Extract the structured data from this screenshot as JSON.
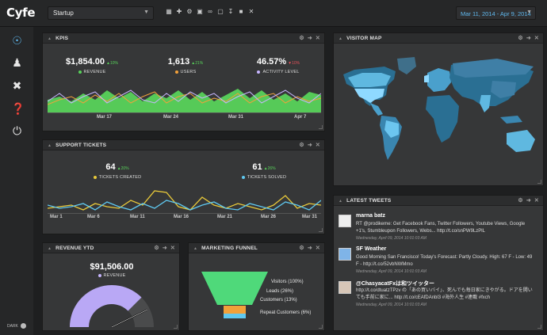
{
  "app": {
    "logo": "Cyfe"
  },
  "toolbar": {
    "dashboard": "Startup",
    "tools": [
      "grid-icon",
      "plus-icon",
      "gear-icon",
      "image-icon",
      "link-icon",
      "monitor-icon",
      "download-icon",
      "users-icon",
      "close-icon"
    ],
    "date_range": "Mar 11, 2014 - Apr 9, 2014"
  },
  "sidebar": {
    "items": [
      "compass-icon",
      "user-icon",
      "tools-icon",
      "help-icon",
      "power-icon"
    ],
    "dark_label": "DARK"
  },
  "kpis": {
    "title": "KPIS",
    "metrics": [
      {
        "value": "$1,854.00",
        "change": "10%",
        "label": "REVENUE",
        "color": "#58d25a"
      },
      {
        "value": "1,613",
        "change": "21%",
        "label": "USERS",
        "color": "#f2a13a"
      },
      {
        "value": "46.57%",
        "change": "10%",
        "label": "ACTIVITY LEVEL",
        "color": "#c7b6ff"
      }
    ],
    "xticks": [
      "Mar 17",
      "Mar 24",
      "Mar 31",
      "Apr 7"
    ]
  },
  "support": {
    "title": "SUPPORT TICKETS",
    "metrics": [
      {
        "value": "64",
        "change": "20%",
        "label": "TICKETS CREATED",
        "color": "#e8c93a"
      },
      {
        "value": "61",
        "change": "26%",
        "label": "TICKETS SOLVED",
        "color": "#5fc8f0"
      }
    ],
    "xticks": [
      "Mar 1",
      "Mar 6",
      "Mar 11",
      "Mar 16",
      "Mar 21",
      "Mar 26",
      "Mar 31"
    ]
  },
  "revenue_ytd": {
    "title": "REVENUE YTD",
    "value": "$91,506.00",
    "label": "REVENUE",
    "fill": 0.75
  },
  "funnel": {
    "title": "MARKETING FUNNEL",
    "stages": [
      {
        "label": "Visitors (100%)",
        "color": "#4fd97a"
      },
      {
        "label": "Leads (26%)",
        "color": "#4fd97a"
      },
      {
        "label": "Customers (13%)",
        "color": "#f2a13a"
      },
      {
        "label": "Repeat Customers (6%)",
        "color": "#5fc8f0"
      }
    ]
  },
  "visitor_map": {
    "title": "VISITOR MAP"
  },
  "tweets": {
    "title": "LATEST TWEETS",
    "items": [
      {
        "name": "marna batz",
        "text": "RT @prodikeme: Get Facebook Fans, Twitter Followers, Youtube Views, Google +1's, Stumbleupon Followers, Webs... http://t.co/snPW9LzPlL",
        "time": "Wednesday, April 09, 2014 10:01:03 AM"
      },
      {
        "name": "SF Weather",
        "text": "Good Morning San Francisco! Today's Forecast: Partly Cloudy. High: 67 F - Low: 49 F - http://t.co/52vbNWMmo",
        "time": "Wednesday, April 09, 2014 10:01:03 AM"
      },
      {
        "name": "@ChasyacatFxは和ツイッター",
        "text": "http://t.co/dtuatzTPzv の「あの買いバイ」、死んでも毎日家にきやがる。ドアを開いても手前に家に... http://t.co/cEAfDAnbl3 #海外人生 #連載 #fxch",
        "time": "Wednesday, April 09, 2014 10:01:03 AM"
      }
    ]
  }
}
